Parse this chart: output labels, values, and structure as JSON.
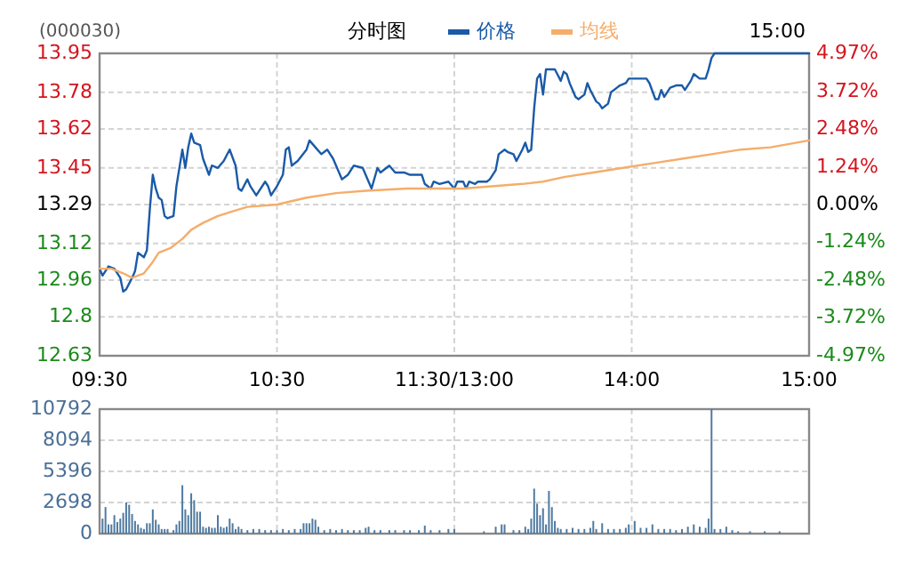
{
  "chart_data": [
    {
      "type": "line",
      "title": "(000030)",
      "subtitle": "分时图",
      "annotations": [
        "15:00"
      ],
      "legend": "top",
      "grid": true,
      "categories": [
        "09:30",
        null,
        null,
        null,
        null,
        null,
        null,
        null,
        null,
        null,
        null,
        null,
        null,
        null,
        null,
        null,
        null,
        null,
        null,
        null,
        null,
        null,
        null,
        null,
        null,
        null,
        null,
        null,
        null,
        null,
        null,
        null,
        null,
        null,
        null,
        null,
        null,
        null,
        null,
        null,
        null,
        null,
        null,
        null,
        null,
        null,
        null,
        null,
        null,
        null,
        null,
        null,
        null,
        null,
        null,
        null,
        null,
        null,
        null,
        null,
        "10:30",
        null,
        null,
        null,
        null,
        null,
        null,
        null,
        null,
        null,
        null,
        null,
        null,
        null,
        null,
        null,
        null,
        null,
        null,
        null,
        null,
        null,
        null,
        null,
        null,
        null,
        null,
        null,
        null,
        null,
        null,
        null,
        null,
        null,
        null,
        null,
        null,
        null,
        null,
        null,
        null,
        null,
        null,
        null,
        null,
        null,
        null,
        null,
        null,
        null,
        null,
        null,
        null,
        null,
        null,
        null,
        null,
        null,
        null,
        null,
        "11:30/13:00",
        null,
        null,
        null,
        null,
        null,
        null,
        null,
        null,
        null,
        null,
        null,
        null,
        null,
        null,
        null,
        null,
        null,
        null,
        null,
        null,
        null,
        null,
        null,
        null,
        null,
        null,
        null,
        null,
        null,
        null,
        null,
        null,
        null,
        null,
        null,
        null,
        null,
        null,
        null,
        null,
        null,
        null,
        null,
        null,
        null,
        null,
        null,
        null,
        null,
        null,
        null,
        null,
        null,
        null,
        null,
        null,
        null,
        null,
        null,
        "14:00",
        null,
        null,
        null,
        null,
        null,
        null,
        null,
        null,
        null,
        null,
        null,
        null,
        null,
        null,
        null,
        null,
        null,
        null,
        null,
        null,
        null,
        null,
        null,
        null,
        null,
        null,
        null,
        null,
        null,
        null,
        null,
        null,
        null,
        null,
        null,
        null,
        null,
        null,
        null,
        null,
        null,
        null,
        null,
        null,
        null,
        null,
        null,
        null,
        null,
        null,
        null,
        null,
        null,
        null,
        null,
        null,
        null,
        null,
        null,
        "15:00"
      ],
      "ylim": [
        12.63,
        13.95
      ],
      "yticks": [
        12.63,
        12.8,
        12.96,
        13.12,
        13.29,
        13.45,
        13.62,
        13.78,
        13.95
      ],
      "y2lim": [
        -4.97,
        4.97
      ],
      "y2ticks": [
        {
          "value": -4.97,
          "label": "-4.97%"
        },
        {
          "value": -3.72,
          "label": "-3.72%"
        },
        {
          "value": -2.48,
          "label": "-2.48%"
        },
        {
          "value": -1.24,
          "label": "-1.24%"
        },
        {
          "value": 0,
          "label": "0.00%"
        },
        {
          "value": 1.24,
          "label": "1.24%"
        },
        {
          "value": 2.48,
          "label": "2.48%"
        },
        {
          "value": 3.72,
          "label": "3.72%"
        },
        {
          "value": 4.97,
          "label": "4.97%"
        }
      ],
      "series": [
        {
          "name": "价格",
          "color": "#1a5aa8",
          "values": [
            13.01,
            12.98,
            null,
            13.02,
            null,
            13.01,
            null,
            12.97,
            12.91,
            12.92,
            null,
            12.97,
            13.0,
            13.08,
            null,
            13.06,
            13.09,
            13.27,
            13.42,
            13.36,
            13.32,
            13.31,
            13.24,
            13.23,
            null,
            13.24,
            13.37,
            null,
            13.53,
            13.45,
            13.54,
            13.6,
            13.56,
            null,
            13.55,
            13.49,
            null,
            13.42,
            13.46,
            null,
            13.45,
            null,
            13.48,
            null,
            13.53,
            null,
            13.46,
            13.36,
            13.35,
            null,
            13.4,
            13.37,
            null,
            13.33,
            null,
            null,
            13.39,
            13.37,
            13.33,
            null,
            13.37,
            null,
            13.42,
            13.53,
            13.54,
            13.46,
            null,
            13.48,
            null,
            null,
            13.53,
            13.57,
            null,
            13.54,
            null,
            13.51,
            null,
            13.53,
            null,
            13.49,
            null,
            null,
            13.4,
            null,
            13.42,
            null,
            13.46,
            null,
            null,
            13.45,
            null,
            null,
            13.36,
            null,
            13.45,
            13.43,
            null,
            null,
            13.46,
            null,
            13.43,
            null,
            null,
            13.43,
            null,
            13.42,
            null,
            null,
            null,
            13.42,
            13.38,
            null,
            13.36,
            13.39,
            null,
            13.38,
            null,
            null,
            13.39,
            null,
            13.36,
            13.39,
            null,
            13.39,
            13.36,
            13.39,
            null,
            13.38,
            13.39,
            null,
            null,
            13.39,
            13.4,
            null,
            13.44,
            13.51,
            null,
            13.53,
            13.52,
            null,
            13.51,
            13.48,
            null,
            13.53,
            13.56,
            13.52,
            13.53,
            13.71,
            13.84,
            13.86,
            13.77,
            13.88,
            null,
            13.88,
            13.88,
            null,
            13.83,
            13.87,
            13.86,
            13.82,
            null,
            13.76,
            13.75,
            null,
            13.77,
            13.82,
            13.79,
            null,
            13.74,
            13.73,
            13.71,
            null,
            13.73,
            13.78,
            null,
            13.8,
            13.81,
            null,
            13.82,
            13.84,
            null,
            13.84,
            null,
            null,
            null,
            13.84,
            13.82,
            null,
            13.75,
            13.75,
            13.79,
            13.76,
            null,
            13.8,
            null,
            13.81,
            null,
            13.81,
            13.79,
            null,
            13.83,
            13.86,
            null,
            13.84,
            null,
            13.84,
            13.88,
            13.93,
            13.95,
            13.95,
            13.95,
            13.95,
            13.95,
            13.95,
            13.95,
            13.95,
            13.95,
            13.95,
            13.95,
            13.95,
            13.95,
            13.95,
            13.95,
            13.95,
            13.95,
            13.95,
            13.95,
            13.95,
            13.95,
            13.95,
            13.95,
            13.95,
            13.95,
            13.95,
            13.95,
            13.95,
            13.95,
            13.95,
            13.95,
            13.95,
            13.95
          ]
        },
        {
          "name": "均线",
          "color": "#f5ad6a",
          "values": [
            13.01,
            null,
            null,
            null,
            13.01,
            null,
            null,
            null,
            12.99,
            null,
            null,
            12.97,
            null,
            null,
            null,
            12.99,
            null,
            null,
            13.04,
            null,
            13.08,
            null,
            null,
            null,
            13.1,
            null,
            null,
            null,
            13.14,
            null,
            null,
            13.18,
            null,
            null,
            null,
            13.21,
            null,
            null,
            null,
            null,
            13.24,
            null,
            null,
            null,
            null,
            13.26,
            null,
            null,
            null,
            null,
            13.28,
            null,
            null,
            null,
            null,
            null,
            null,
            null,
            null,
            null,
            13.29,
            null,
            null,
            null,
            null,
            null,
            null,
            null,
            null,
            null,
            13.32,
            null,
            null,
            null,
            null,
            null,
            null,
            null,
            null,
            null,
            13.34,
            null,
            null,
            null,
            null,
            null,
            null,
            null,
            null,
            null,
            13.35,
            null,
            null,
            null,
            null,
            null,
            null,
            null,
            null,
            null,
            null,
            null,
            null,
            null,
            13.36,
            null,
            null,
            null,
            null,
            null,
            null,
            null,
            null,
            null,
            null,
            null,
            null,
            null,
            null,
            null,
            null,
            null,
            null,
            13.36,
            null,
            null,
            null,
            null,
            null,
            null,
            null,
            null,
            null,
            null,
            null,
            null,
            null,
            null,
            null,
            null,
            null,
            null,
            null,
            13.38,
            null,
            null,
            null,
            null,
            null,
            null,
            13.39,
            null,
            null,
            null,
            null,
            null,
            null,
            13.41,
            null,
            null,
            null,
            null,
            null,
            null,
            null,
            null,
            null,
            13.43,
            null,
            null,
            null,
            null,
            null,
            null,
            null,
            null,
            null,
            13.45,
            null,
            null,
            null,
            null,
            null,
            null,
            null,
            null,
            null,
            13.47,
            null,
            null,
            null,
            null,
            null,
            null,
            null,
            null,
            null,
            13.49,
            null,
            null,
            null,
            null,
            null,
            null,
            null,
            null,
            null,
            13.51,
            null,
            null,
            null,
            null,
            null,
            null,
            null,
            null,
            null,
            13.53,
            null,
            null,
            null,
            null,
            null,
            null,
            null,
            null,
            null,
            13.54,
            null,
            null,
            null,
            null,
            null,
            null,
            null,
            null,
            null,
            null,
            null,
            null,
            13.57
          ]
        }
      ]
    },
    {
      "type": "bar",
      "color": "#4f7aa0",
      "grid": true,
      "tick_labels": "y",
      "categories": [
        null,
        null,
        null,
        null,
        null,
        null,
        null,
        null,
        null,
        null,
        null,
        null,
        null,
        null,
        null,
        null,
        null,
        null,
        null,
        null,
        null,
        null,
        null,
        null,
        null,
        null,
        null,
        null,
        null,
        null,
        null,
        null,
        null,
        null,
        null,
        null,
        null,
        null,
        null,
        null,
        null,
        null,
        null,
        null,
        null,
        null,
        null,
        null,
        null,
        null,
        null,
        null,
        null,
        null,
        null,
        null,
        null,
        null,
        null,
        null,
        null,
        null,
        null,
        null,
        null,
        null,
        null,
        null,
        null,
        null,
        null,
        null,
        null,
        null,
        null,
        null,
        null,
        null,
        null,
        null,
        null,
        null,
        null,
        null,
        null,
        null,
        null,
        null,
        null,
        null,
        null,
        null,
        null,
        null,
        null,
        null,
        null,
        null,
        null,
        null,
        null,
        null,
        null,
        null,
        null,
        null,
        null,
        null,
        null,
        null,
        null,
        null,
        null,
        null,
        null,
        null,
        null,
        null,
        null,
        null,
        null,
        null,
        null,
        null,
        null,
        null,
        null,
        null,
        null,
        null,
        null,
        null,
        null,
        null,
        null,
        null,
        null,
        null,
        null,
        null,
        null,
        null,
        null,
        null,
        null,
        null,
        null,
        null,
        null,
        null,
        null,
        null,
        null,
        null,
        null,
        null,
        null,
        null,
        null,
        null,
        null,
        null,
        null,
        null,
        null,
        null,
        null,
        null,
        null,
        null,
        null,
        null,
        null,
        null,
        null,
        null,
        null,
        null,
        null,
        null,
        null,
        null,
        null,
        null,
        null,
        null,
        null,
        null,
        null,
        null,
        null,
        null,
        null,
        null,
        null,
        null,
        null,
        null,
        null,
        null,
        null,
        null,
        null,
        null,
        null,
        null,
        null,
        null,
        null,
        null,
        null,
        null,
        null,
        null,
        null,
        null,
        null,
        null,
        null,
        null,
        null,
        null,
        null,
        null,
        null,
        null,
        null,
        null,
        null,
        null,
        null,
        null,
        null,
        null,
        null,
        null,
        null,
        null,
        null,
        null,
        null
      ],
      "ylim": [
        0,
        10792
      ],
      "yticks": [
        0,
        2698,
        5396,
        8094,
        10792
      ],
      "values": [
        null,
        1300,
        2300,
        800,
        800,
        1600,
        1000,
        1300,
        1800,
        2700,
        2500,
        1700,
        1100,
        800,
        500,
        400,
        900,
        900,
        2100,
        1200,
        800,
        400,
        400,
        400,
        null,
        300,
        800,
        1100,
        4200,
        2100,
        1600,
        3500,
        2900,
        1900,
        1900,
        600,
        500,
        600,
        500,
        500,
        1600,
        600,
        500,
        600,
        1300,
        900,
        400,
        600,
        400,
        null,
        300,
        null,
        400,
        null,
        400,
        null,
        300,
        null,
        300,
        null,
        300,
        null,
        400,
        null,
        300,
        null,
        400,
        null,
        400,
        900,
        900,
        900,
        1300,
        1200,
        600,
        null,
        300,
        null,
        400,
        null,
        300,
        null,
        400,
        null,
        300,
        null,
        300,
        null,
        300,
        null,
        500,
        600,
        null,
        300,
        null,
        300,
        null,
        null,
        300,
        null,
        300,
        null,
        null,
        300,
        null,
        300,
        null,
        null,
        300,
        null,
        700,
        null,
        300,
        null,
        null,
        300,
        null,
        null,
        400,
        null,
        400,
        null,
        null,
        null,
        null,
        null,
        null,
        null,
        null,
        null,
        200,
        null,
        null,
        null,
        600,
        null,
        800,
        800,
        null,
        null,
        300,
        null,
        300,
        null,
        600,
        400,
        1300,
        3900,
        2600,
        1600,
        2200,
        800,
        3700,
        2300,
        1100,
        500,
        400,
        null,
        400,
        null,
        500,
        null,
        400,
        null,
        400,
        null,
        500,
        1100,
        400,
        null,
        900,
        null,
        400,
        null,
        400,
        null,
        400,
        null,
        500,
        800,
        null,
        1100,
        null,
        500,
        null,
        500,
        null,
        800,
        null,
        400,
        null,
        400,
        null,
        400,
        null,
        300,
        null,
        400,
        null,
        600,
        null,
        800,
        null,
        600,
        null,
        500,
        1300,
        10792,
        400,
        null,
        400,
        null,
        600,
        null,
        300,
        null,
        200,
        null,
        null,
        null,
        200,
        null,
        null,
        null,
        null,
        200,
        null,
        null,
        null,
        null,
        200,
        null,
        null,
        null,
        null,
        null,
        null,
        null,
        null,
        null,
        null
      ]
    }
  ]
}
